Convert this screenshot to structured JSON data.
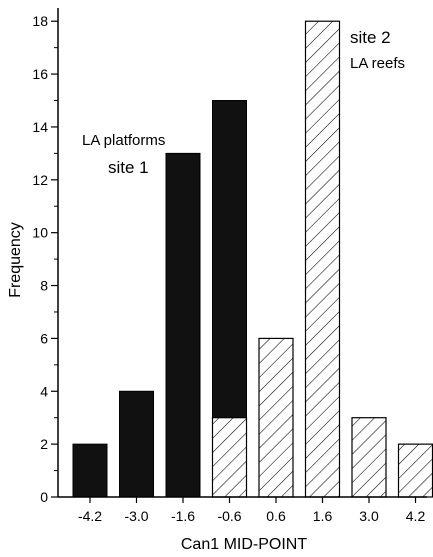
{
  "chart_data": {
    "type": "bar",
    "title": "",
    "xlabel": "Can1 MID-POINT",
    "ylabel": "Frequency",
    "ylim": [
      0,
      18.5
    ],
    "yticks": [
      0,
      2,
      4,
      6,
      8,
      10,
      12,
      14,
      16,
      18
    ],
    "categories": [
      "-4.2",
      "-3.0",
      "-1.6",
      "-0.6",
      "0.6",
      "1.6",
      "3.0",
      "4.2"
    ],
    "series": [
      {
        "name": "site 1",
        "fill": "solid",
        "color": "#111111",
        "values": [
          2,
          4,
          13,
          15,
          0,
          0,
          0,
          0
        ]
      },
      {
        "name": "site 2",
        "fill": "hatched",
        "color": "#000000",
        "values": [
          0,
          0,
          0,
          3,
          6,
          18,
          3,
          2
        ]
      }
    ],
    "annotations": [
      {
        "text": "LA platforms",
        "near_category": "-1.6"
      },
      {
        "text": "site 1",
        "near_category": "-1.6"
      },
      {
        "text": "site 2",
        "near_category": "1.6"
      },
      {
        "text": "LA reefs",
        "near_category": "1.6"
      }
    ]
  }
}
